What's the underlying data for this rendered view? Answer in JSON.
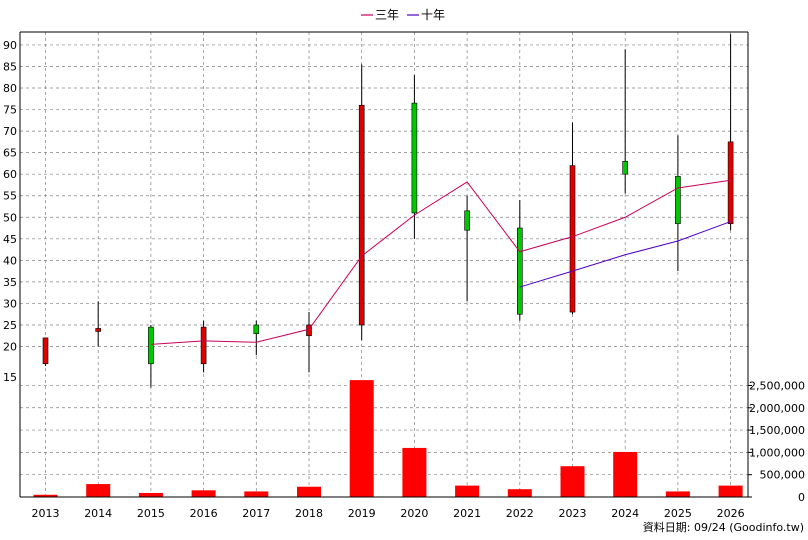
{
  "legend": [
    {
      "label": "三年",
      "color": "#c8005a"
    },
    {
      "label": "十年",
      "color": "#5000c8"
    }
  ],
  "footer_text": "資料日期: 09/24 (Goodinfo.tw)",
  "chart_data": {
    "type": "candlestick_with_volume",
    "years": [
      "2013",
      "2014",
      "2015",
      "2016",
      "2017",
      "2018",
      "2019",
      "2020",
      "2021",
      "2022",
      "2023",
      "2024",
      "2025",
      "2026"
    ],
    "price_axis": {
      "ylim": [
        12,
        93
      ],
      "ticks": [
        20,
        25,
        30,
        35,
        40,
        45,
        50,
        55,
        60,
        65,
        70,
        75,
        80,
        85,
        90
      ],
      "tick_labels": [
        "20",
        "25",
        "30",
        "35",
        "40",
        "45",
        "50",
        "55",
        "60",
        "65",
        "70",
        "75",
        "80",
        "85",
        "90"
      ],
      "extra_label": "15"
    },
    "volume_axis": {
      "ylim": [
        0,
        2600000
      ],
      "ticks": [
        0,
        500000,
        1000000,
        1500000,
        2000000,
        2500000
      ],
      "tick_labels": [
        "0",
        "500,000",
        "1,000,000",
        "1,500,000",
        "2,000,000",
        "2,500,000"
      ]
    },
    "candles": [
      {
        "year": "2013",
        "open": 22,
        "close": 16,
        "high": 22,
        "low": 15.5
      },
      {
        "year": "2014",
        "open": 24.2,
        "close": 23.5,
        "high": 30.5,
        "low": 20
      },
      {
        "year": "2015",
        "open": 16,
        "close": 24.5,
        "high": 25,
        "low": 10.5
      },
      {
        "year": "2016",
        "open": 24.5,
        "close": 16,
        "high": 26,
        "low": 14
      },
      {
        "year": "2017",
        "open": 23,
        "close": 25,
        "high": 26,
        "low": 18
      },
      {
        "year": "2018",
        "open": 25,
        "close": 22.5,
        "high": 28,
        "low": 14
      },
      {
        "year": "2019",
        "open": 76,
        "close": 25,
        "high": 85.5,
        "low": 21.5
      },
      {
        "year": "2020",
        "open": 51,
        "close": 76.5,
        "high": 83,
        "low": 45
      },
      {
        "year": "2021",
        "open": 47,
        "close": 51.5,
        "high": 55,
        "low": 30.5
      },
      {
        "year": "2022",
        "open": 27.5,
        "close": 47.5,
        "high": 54,
        "low": 26
      },
      {
        "year": "2023",
        "open": 62,
        "close": 28,
        "high": 72,
        "low": 27.5
      },
      {
        "year": "2024",
        "open": 60,
        "close": 63,
        "high": 89,
        "low": 55.5
      },
      {
        "year": "2025",
        "open": 48.5,
        "close": 59.5,
        "high": 69,
        "low": 37.5
      },
      {
        "year": "2026",
        "open": 67.5,
        "close": 48.5,
        "high": 92.5,
        "low": 47
      }
    ],
    "series": [
      {
        "name": "三年",
        "color": "#c8005a",
        "x": [
          "2015",
          "2016",
          "2017",
          "2018",
          "2019",
          "2020",
          "2021",
          "2022",
          "2023",
          "2024",
          "2025",
          "2026"
        ],
        "values": [
          20.5,
          21.3,
          21,
          24,
          41,
          50.5,
          58.2,
          42,
          45.5,
          50,
          56.8,
          58.6
        ]
      },
      {
        "name": "十年",
        "color": "#5000c8",
        "x": [
          "2022",
          "2023",
          "2024",
          "2025",
          "2026"
        ],
        "values": [
          33.8,
          37.5,
          41.3,
          44.5,
          49
        ]
      }
    ],
    "volume": [
      {
        "year": "2013",
        "value": 50000
      },
      {
        "year": "2014",
        "value": 290000
      },
      {
        "year": "2015",
        "value": 90000
      },
      {
        "year": "2016",
        "value": 150000
      },
      {
        "year": "2017",
        "value": 125000
      },
      {
        "year": "2018",
        "value": 230000
      },
      {
        "year": "2019",
        "value": 2620000
      },
      {
        "year": "2020",
        "value": 1100000
      },
      {
        "year": "2021",
        "value": 255000
      },
      {
        "year": "2022",
        "value": 175000
      },
      {
        "year": "2023",
        "value": 690000
      },
      {
        "year": "2024",
        "value": 1010000
      },
      {
        "year": "2025",
        "value": 125000
      },
      {
        "year": "2026",
        "value": 255000
      }
    ],
    "colors": {
      "up": "#00c800",
      "down": "#e00000",
      "volume": "#ff0000",
      "grid": "#808080"
    },
    "grid": true,
    "legend_position": "top-center"
  }
}
